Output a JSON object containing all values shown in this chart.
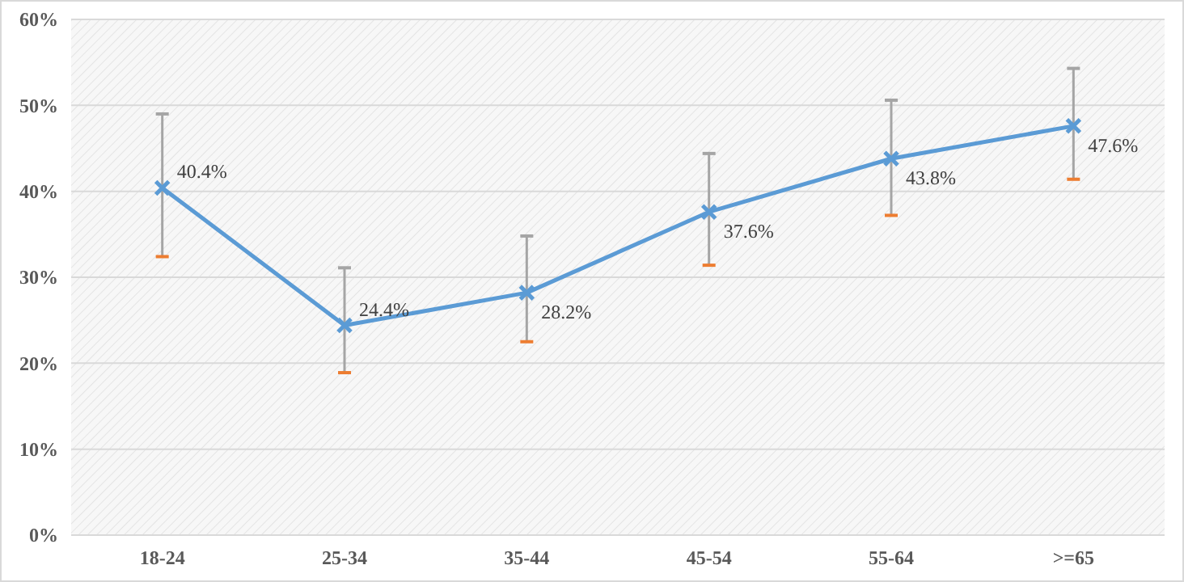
{
  "chart_data": {
    "type": "line",
    "categories": [
      "18-24",
      "25-34",
      "35-44",
      "45-54",
      "55-64",
      ">=65"
    ],
    "series": [
      {
        "color": "#5b9bd5",
        "values": [
          40.4,
          24.4,
          28.2,
          37.6,
          43.8,
          47.6
        ],
        "value_labels": [
          "40.4%",
          "24.4%",
          "28.2%",
          "37.6%",
          "43.8%",
          "47.6%"
        ],
        "errors": [
          [
            32.4,
            49.0
          ],
          [
            18.9,
            31.1
          ],
          [
            22.5,
            34.8
          ],
          [
            31.4,
            44.4
          ],
          [
            37.2,
            50.6
          ],
          [
            41.4,
            54.3
          ]
        ]
      }
    ],
    "ylim": [
      0,
      60
    ],
    "yticks": [
      {
        "value": 0,
        "label": "0%"
      },
      {
        "value": 10,
        "label": "10%"
      },
      {
        "value": 20,
        "label": "20%"
      },
      {
        "value": 30,
        "label": "30%"
      },
      {
        "value": 40,
        "label": "40%"
      },
      {
        "value": 50,
        "label": "50%"
      },
      {
        "value": 60,
        "label": "60%"
      }
    ],
    "grid": "y",
    "marker": "cross",
    "line_style": "solid"
  }
}
